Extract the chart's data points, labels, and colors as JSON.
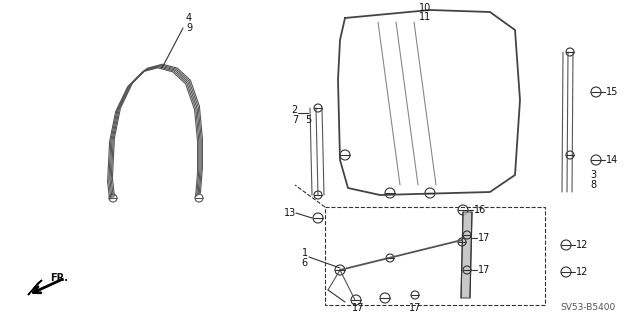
{
  "bg_color": "#ffffff",
  "part_number": "SV53-B5400",
  "line_color": "#333333",
  "label_color": "#111111",
  "fig_w": 6.4,
  "fig_h": 3.19,
  "dpi": 100
}
